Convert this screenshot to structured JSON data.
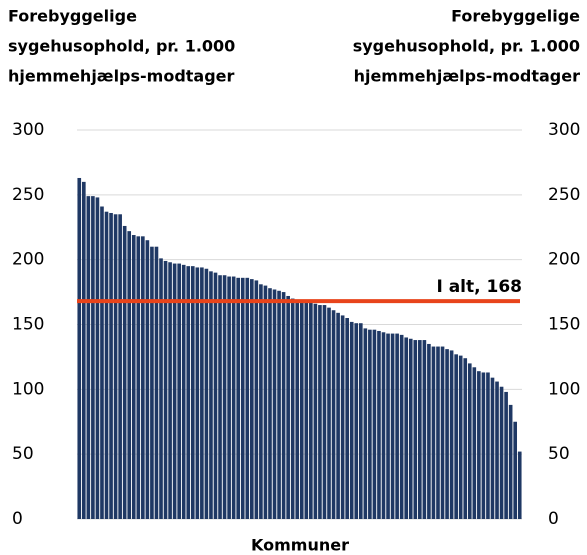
{
  "chart_data": {
    "type": "bar",
    "y_label": [
      "Forebyggelige",
      "sygehusophold, pr. 1.000",
      "hjemmehjælps-modtager"
    ],
    "y2_label": [
      "Forebyggelige",
      "sygehusophold, pr. 1.000",
      "hjemmehjælps-modtager"
    ],
    "x_label": "Kommuner",
    "categories": [
      null,
      null,
      null,
      null,
      null,
      null,
      null,
      null,
      null,
      null,
      null,
      null,
      null,
      null,
      null,
      null,
      null,
      null,
      null,
      null,
      null,
      null,
      null,
      null,
      null,
      null,
      null,
      null,
      null,
      null,
      null,
      null,
      null,
      null,
      null,
      null,
      null,
      null,
      null,
      null,
      null,
      null,
      null,
      null,
      null,
      null,
      null,
      null,
      null,
      null,
      null,
      null,
      null,
      null,
      null,
      null,
      null,
      null,
      null,
      null,
      null,
      null,
      null,
      null,
      null,
      null,
      null,
      null,
      null,
      null,
      null,
      null,
      null,
      null,
      null,
      null,
      null,
      null,
      null,
      null,
      null,
      null,
      null,
      null,
      null,
      null,
      null,
      null,
      null,
      null,
      null,
      null,
      null,
      null,
      null,
      null,
      null,
      null
    ],
    "values": [
      263,
      260,
      249,
      249,
      248,
      241,
      237,
      236,
      235,
      235,
      226,
      222,
      219,
      218,
      218,
      215,
      210,
      210,
      201,
      199,
      198,
      197,
      197,
      196,
      195,
      195,
      194,
      194,
      193,
      191,
      190,
      188,
      188,
      187,
      187,
      186,
      186,
      186,
      185,
      184,
      181,
      180,
      178,
      177,
      176,
      175,
      172,
      170,
      169,
      168,
      168,
      167,
      166,
      165,
      165,
      163,
      161,
      159,
      157,
      155,
      152,
      151,
      151,
      147,
      146,
      146,
      145,
      144,
      143,
      143,
      143,
      142,
      140,
      139,
      138,
      138,
      138,
      135,
      133,
      133,
      133,
      131,
      130,
      127,
      126,
      124,
      120,
      117,
      114,
      113,
      113,
      109,
      106,
      102,
      98,
      88,
      75,
      52
    ],
    "color": "#1f3864",
    "ylim": [
      0,
      300
    ],
    "yticks": [
      0,
      50,
      100,
      150,
      200,
      250,
      300
    ],
    "y2lim": [
      0,
      300
    ],
    "y2ticks": [
      0,
      50,
      100,
      150,
      200,
      250,
      300
    ],
    "grid": true,
    "reference_line": {
      "value": 168,
      "label": "I alt, 168",
      "color": "#e8441b"
    }
  }
}
